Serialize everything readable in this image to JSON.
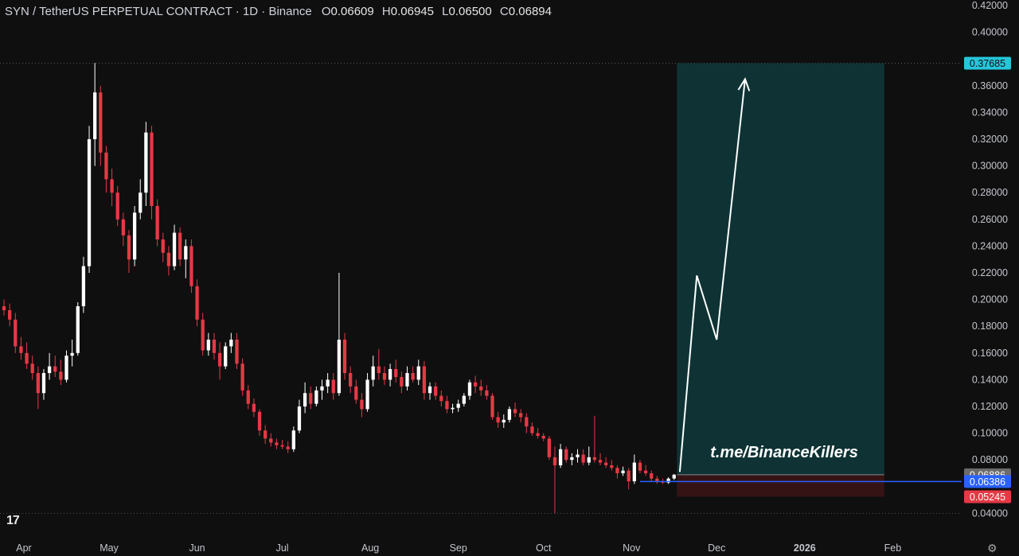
{
  "header": {
    "symbol": "SYN / TetherUS PERPETUAL CONTRACT · 1D · Binance",
    "ohlc": [
      {
        "k": "O",
        "v": "0.06609"
      },
      {
        "k": "H",
        "v": "0.06945"
      },
      {
        "k": "L",
        "v": "0.06500"
      },
      {
        "k": "C",
        "v": "0.06894"
      }
    ]
  },
  "logo": "17",
  "settings_icon": "gear-icon",
  "watermark": "t.me/BinanceKillers",
  "chart_data": {
    "type": "candlestick",
    "ylim": [
      0.036,
      0.424
    ],
    "y_ticks": [
      "0.42000",
      "0.40000",
      "0.36000",
      "0.34000",
      "0.32000",
      "0.30000",
      "0.28000",
      "0.26000",
      "0.24000",
      "0.22000",
      "0.20000",
      "0.18000",
      "0.16000",
      "0.14000",
      "0.12000",
      "0.10000",
      "0.08000",
      "0.04000"
    ],
    "x_ticks": [
      "Apr",
      "May",
      "Jun",
      "Jul",
      "Aug",
      "Sep",
      "Oct",
      "Nov",
      "Dec",
      "2026",
      "Feb"
    ],
    "price_labels": [
      {
        "text": "0.37685",
        "value": 0.37685,
        "color": "#26c6da"
      },
      {
        "text": "0.06886",
        "value": 0.06886,
        "color": "#6b6b6b"
      },
      {
        "text": "0.06386",
        "value": 0.06386,
        "color": "#2962ff"
      },
      {
        "text": "0.05245",
        "value": 0.05245,
        "color": "#e53945"
      }
    ],
    "position": {
      "entry": 0.06886,
      "target": 0.37685,
      "stop": 0.05245,
      "start": "2025-11-17",
      "end": "2026-01-29"
    },
    "horizontal_line": 0.06386,
    "arrow_path": [
      {
        "date": "2025-11-18",
        "price": 0.071
      },
      {
        "date": "2025-11-24",
        "price": 0.218
      },
      {
        "date": "2025-12-01",
        "price": 0.17
      },
      {
        "date": "2025-12-11",
        "price": 0.365
      }
    ],
    "candles": [
      [
        "2025-03-25",
        0.195,
        0.2,
        0.188,
        0.192
      ],
      [
        "2025-03-27",
        0.192,
        0.197,
        0.18,
        0.185
      ],
      [
        "2025-03-29",
        0.185,
        0.19,
        0.16,
        0.165
      ],
      [
        "2025-03-31",
        0.165,
        0.172,
        0.155,
        0.16
      ],
      [
        "2025-04-02",
        0.16,
        0.168,
        0.148,
        0.152
      ],
      [
        "2025-04-04",
        0.152,
        0.158,
        0.14,
        0.145
      ],
      [
        "2025-04-06",
        0.145,
        0.15,
        0.118,
        0.13
      ],
      [
        "2025-04-08",
        0.13,
        0.148,
        0.125,
        0.145
      ],
      [
        "2025-04-10",
        0.145,
        0.16,
        0.14,
        0.15
      ],
      [
        "2025-04-12",
        0.15,
        0.158,
        0.142,
        0.146
      ],
      [
        "2025-04-14",
        0.146,
        0.155,
        0.136,
        0.14
      ],
      [
        "2025-04-16",
        0.14,
        0.162,
        0.138,
        0.158
      ],
      [
        "2025-04-18",
        0.158,
        0.17,
        0.15,
        0.16
      ],
      [
        "2025-04-20",
        0.16,
        0.198,
        0.158,
        0.195
      ],
      [
        "2025-04-22",
        0.195,
        0.232,
        0.19,
        0.225
      ],
      [
        "2025-04-24",
        0.225,
        0.33,
        0.22,
        0.32
      ],
      [
        "2025-04-26",
        0.32,
        0.377,
        0.3,
        0.355
      ],
      [
        "2025-04-28",
        0.355,
        0.36,
        0.3,
        0.31
      ],
      [
        "2025-04-30",
        0.31,
        0.315,
        0.28,
        0.29
      ],
      [
        "2025-05-02",
        0.29,
        0.298,
        0.27,
        0.28
      ],
      [
        "2025-05-04",
        0.28,
        0.285,
        0.255,
        0.26
      ],
      [
        "2025-05-06",
        0.26,
        0.265,
        0.24,
        0.248
      ],
      [
        "2025-05-08",
        0.248,
        0.252,
        0.22,
        0.23
      ],
      [
        "2025-05-10",
        0.23,
        0.27,
        0.225,
        0.265
      ],
      [
        "2025-05-12",
        0.265,
        0.29,
        0.26,
        0.28
      ],
      [
        "2025-05-14",
        0.28,
        0.333,
        0.27,
        0.325
      ],
      [
        "2025-05-16",
        0.325,
        0.33,
        0.26,
        0.27
      ],
      [
        "2025-05-18",
        0.27,
        0.275,
        0.24,
        0.245
      ],
      [
        "2025-05-20",
        0.245,
        0.25,
        0.228,
        0.235
      ],
      [
        "2025-05-22",
        0.235,
        0.24,
        0.218,
        0.225
      ],
      [
        "2025-05-24",
        0.225,
        0.256,
        0.222,
        0.25
      ],
      [
        "2025-05-26",
        0.25,
        0.254,
        0.225,
        0.23
      ],
      [
        "2025-05-28",
        0.23,
        0.245,
        0.216,
        0.24
      ],
      [
        "2025-05-30",
        0.24,
        0.245,
        0.205,
        0.21
      ],
      [
        "2025-06-01",
        0.21,
        0.215,
        0.18,
        0.185
      ],
      [
        "2025-06-03",
        0.185,
        0.19,
        0.158,
        0.162
      ],
      [
        "2025-06-05",
        0.162,
        0.175,
        0.158,
        0.17
      ],
      [
        "2025-06-07",
        0.17,
        0.175,
        0.155,
        0.16
      ],
      [
        "2025-06-09",
        0.16,
        0.168,
        0.14,
        0.15
      ],
      [
        "2025-06-11",
        0.15,
        0.168,
        0.148,
        0.165
      ],
      [
        "2025-06-13",
        0.165,
        0.175,
        0.16,
        0.17
      ],
      [
        "2025-06-15",
        0.17,
        0.175,
        0.148,
        0.152
      ],
      [
        "2025-06-17",
        0.152,
        0.156,
        0.128,
        0.132
      ],
      [
        "2025-06-19",
        0.132,
        0.136,
        0.118,
        0.122
      ],
      [
        "2025-06-21",
        0.122,
        0.126,
        0.112,
        0.116
      ],
      [
        "2025-06-23",
        0.116,
        0.118,
        0.098,
        0.102
      ],
      [
        "2025-06-25",
        0.102,
        0.106,
        0.092,
        0.096
      ],
      [
        "2025-06-27",
        0.096,
        0.1,
        0.09,
        0.093
      ],
      [
        "2025-06-29",
        0.093,
        0.096,
        0.088,
        0.091
      ],
      [
        "2025-07-01",
        0.091,
        0.095,
        0.088,
        0.09
      ],
      [
        "2025-07-03",
        0.09,
        0.094,
        0.085,
        0.088
      ],
      [
        "2025-07-05",
        0.088,
        0.105,
        0.086,
        0.102
      ],
      [
        "2025-07-07",
        0.102,
        0.125,
        0.1,
        0.12
      ],
      [
        "2025-07-09",
        0.12,
        0.138,
        0.115,
        0.13
      ],
      [
        "2025-07-11",
        0.13,
        0.135,
        0.118,
        0.122
      ],
      [
        "2025-07-13",
        0.122,
        0.135,
        0.12,
        0.132
      ],
      [
        "2025-07-15",
        0.132,
        0.14,
        0.125,
        0.135
      ],
      [
        "2025-07-17",
        0.135,
        0.145,
        0.13,
        0.14
      ],
      [
        "2025-07-19",
        0.14,
        0.145,
        0.125,
        0.13
      ],
      [
        "2025-07-21",
        0.13,
        0.22,
        0.128,
        0.17
      ],
      [
        "2025-07-23",
        0.17,
        0.175,
        0.14,
        0.145
      ],
      [
        "2025-07-25",
        0.145,
        0.15,
        0.13,
        0.135
      ],
      [
        "2025-07-27",
        0.135,
        0.14,
        0.122,
        0.125
      ],
      [
        "2025-07-29",
        0.125,
        0.13,
        0.112,
        0.118
      ],
      [
        "2025-07-31",
        0.118,
        0.145,
        0.116,
        0.14
      ],
      [
        "2025-08-02",
        0.14,
        0.158,
        0.135,
        0.15
      ],
      [
        "2025-08-04",
        0.15,
        0.163,
        0.14,
        0.145
      ],
      [
        "2025-08-06",
        0.145,
        0.15,
        0.136,
        0.14
      ],
      [
        "2025-08-08",
        0.14,
        0.152,
        0.135,
        0.148
      ],
      [
        "2025-08-10",
        0.148,
        0.155,
        0.138,
        0.142
      ],
      [
        "2025-08-12",
        0.142,
        0.146,
        0.13,
        0.135
      ],
      [
        "2025-08-14",
        0.135,
        0.15,
        0.132,
        0.145
      ],
      [
        "2025-08-16",
        0.145,
        0.15,
        0.138,
        0.14
      ],
      [
        "2025-08-18",
        0.14,
        0.155,
        0.136,
        0.15
      ],
      [
        "2025-08-20",
        0.15,
        0.154,
        0.125,
        0.13
      ],
      [
        "2025-08-22",
        0.13,
        0.138,
        0.125,
        0.135
      ],
      [
        "2025-08-24",
        0.135,
        0.138,
        0.125,
        0.128
      ],
      [
        "2025-08-26",
        0.128,
        0.132,
        0.12,
        0.124
      ],
      [
        "2025-08-28",
        0.124,
        0.128,
        0.115,
        0.118
      ],
      [
        "2025-08-30",
        0.118,
        0.122,
        0.115,
        0.119
      ],
      [
        "2025-09-01",
        0.119,
        0.125,
        0.116,
        0.122
      ],
      [
        "2025-09-03",
        0.122,
        0.13,
        0.12,
        0.128
      ],
      [
        "2025-09-05",
        0.128,
        0.14,
        0.125,
        0.138
      ],
      [
        "2025-09-07",
        0.138,
        0.143,
        0.13,
        0.135
      ],
      [
        "2025-09-09",
        0.135,
        0.14,
        0.128,
        0.132
      ],
      [
        "2025-09-11",
        0.132,
        0.136,
        0.125,
        0.128
      ],
      [
        "2025-09-13",
        0.128,
        0.13,
        0.11,
        0.112
      ],
      [
        "2025-09-15",
        0.112,
        0.116,
        0.104,
        0.108
      ],
      [
        "2025-09-17",
        0.108,
        0.114,
        0.104,
        0.11
      ],
      [
        "2025-09-19",
        0.11,
        0.12,
        0.108,
        0.118
      ],
      [
        "2025-09-21",
        0.118,
        0.123,
        0.112,
        0.115
      ],
      [
        "2025-09-23",
        0.115,
        0.118,
        0.108,
        0.112
      ],
      [
        "2025-09-25",
        0.112,
        0.115,
        0.1,
        0.105
      ],
      [
        "2025-09-27",
        0.105,
        0.108,
        0.098,
        0.1
      ],
      [
        "2025-09-29",
        0.1,
        0.104,
        0.096,
        0.098
      ],
      [
        "2025-10-01",
        0.098,
        0.1,
        0.094,
        0.096
      ],
      [
        "2025-10-03",
        0.096,
        0.098,
        0.08,
        0.082
      ],
      [
        "2025-10-05",
        0.082,
        0.09,
        0.04,
        0.076
      ],
      [
        "2025-10-07",
        0.076,
        0.092,
        0.074,
        0.088
      ],
      [
        "2025-10-09",
        0.088,
        0.09,
        0.078,
        0.08
      ],
      [
        "2025-10-11",
        0.08,
        0.085,
        0.076,
        0.082
      ],
      [
        "2025-10-13",
        0.082,
        0.088,
        0.078,
        0.084
      ],
      [
        "2025-10-15",
        0.084,
        0.088,
        0.076,
        0.078
      ],
      [
        "2025-10-17",
        0.078,
        0.09,
        0.076,
        0.082
      ],
      [
        "2025-10-19",
        0.082,
        0.113,
        0.078,
        0.08
      ],
      [
        "2025-10-21",
        0.08,
        0.085,
        0.076,
        0.078
      ],
      [
        "2025-10-23",
        0.078,
        0.082,
        0.074,
        0.076
      ],
      [
        "2025-10-25",
        0.076,
        0.08,
        0.072,
        0.074
      ],
      [
        "2025-10-27",
        0.074,
        0.076,
        0.066,
        0.07
      ],
      [
        "2025-10-29",
        0.07,
        0.075,
        0.068,
        0.072
      ],
      [
        "2025-10-31",
        0.072,
        0.074,
        0.058,
        0.064
      ],
      [
        "2025-11-02",
        0.064,
        0.084,
        0.062,
        0.078
      ],
      [
        "2025-11-04",
        0.078,
        0.08,
        0.07,
        0.072
      ],
      [
        "2025-11-06",
        0.072,
        0.076,
        0.068,
        0.07
      ],
      [
        "2025-11-08",
        0.07,
        0.072,
        0.064,
        0.066
      ],
      [
        "2025-11-10",
        0.066,
        0.068,
        0.062,
        0.064
      ],
      [
        "2025-11-12",
        0.064,
        0.066,
        0.062,
        0.063
      ],
      [
        "2025-11-14",
        0.063,
        0.067,
        0.062,
        0.066
      ],
      [
        "2025-11-16",
        0.06609,
        0.06945,
        0.065,
        0.06894
      ]
    ]
  }
}
